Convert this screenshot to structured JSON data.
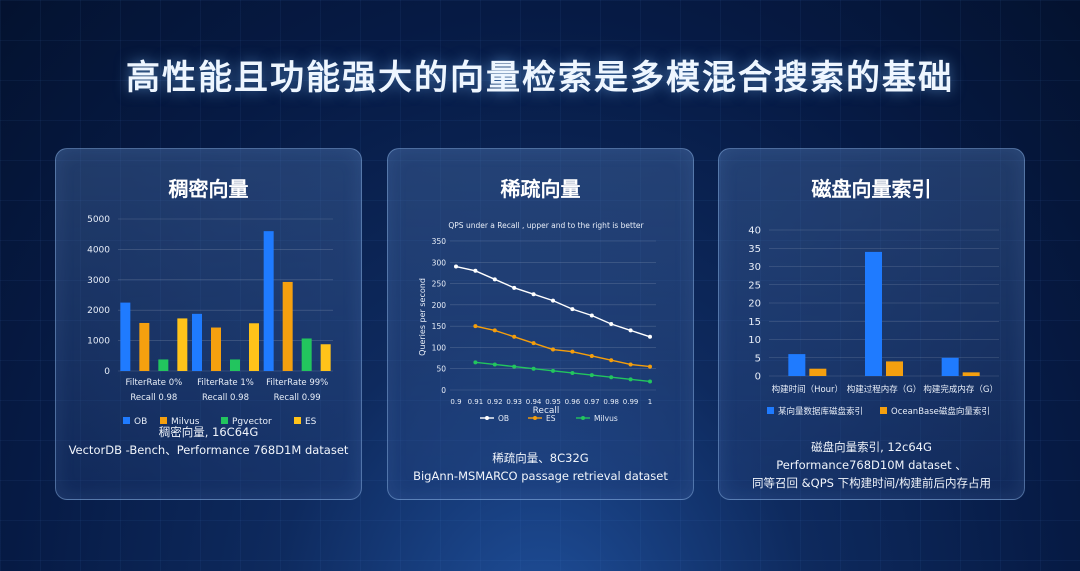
{
  "title": "高性能且功能强大的向量检索是多模混合搜索的基础",
  "cards": [
    {
      "title": "稠密向量",
      "caption": [
        "稠密向量, 16C64G",
        "VectorDB -Bench、Performance 768D1M dataset"
      ]
    },
    {
      "title": "稀疏向量",
      "caption": [
        "稀疏向量、8C32G",
        "BigAnn-MSMARCO passage retrieval dataset"
      ]
    },
    {
      "title": "磁盘向量索引",
      "caption": [
        "磁盘向量索引, 12c64G",
        "Performance768D10M dataset 、",
        "同等召回 &QPS 下构建时间/构建前后内存占用"
      ]
    }
  ],
  "chart_data": [
    {
      "type": "bar",
      "categories": [
        [
          "FilterRate 0%",
          "Recall 0.98"
        ],
        [
          "FilterRate 1%",
          "Recall 0.98"
        ],
        [
          "FilterRate 99%",
          "Recall 0.99"
        ]
      ],
      "series": [
        {
          "name": "OB",
          "color": "#1f7bff",
          "values": [
            2250,
            1880,
            4600
          ]
        },
        {
          "name": "Milvus",
          "color": "#f5a00f",
          "values": [
            1580,
            1430,
            2930
          ]
        },
        {
          "name": "Pgvector",
          "color": "#22c55e",
          "values": [
            380,
            380,
            1070
          ]
        },
        {
          "name": "ES",
          "color": "#ffc31a",
          "values": [
            1730,
            1570,
            880
          ]
        }
      ],
      "yticks": [
        0,
        1000,
        2000,
        3000,
        4000,
        5000
      ],
      "ylim": [
        0,
        5000
      ]
    },
    {
      "type": "line",
      "title": "QPS under a Recall , upper and to the right is better",
      "xlabel": "Recall",
      "ylabel": "Queries per second",
      "x": [
        0.9,
        0.91,
        0.92,
        0.93,
        0.94,
        0.95,
        0.96,
        0.97,
        0.98,
        0.99,
        1
      ],
      "xticks": [
        "0.9",
        "0.91",
        "0.92",
        "0.93",
        "0.94",
        "0.95",
        "0.96",
        "0.97",
        "0.98",
        "0.99",
        "1"
      ],
      "yticks": [
        0,
        50,
        100,
        150,
        200,
        250,
        300,
        350
      ],
      "ylim": [
        0,
        350
      ],
      "series": [
        {
          "name": "OB",
          "color": "#ffffff",
          "x": [
            0.9,
            0.91,
            0.92,
            0.93,
            0.94,
            0.95,
            0.96,
            0.97,
            0.98,
            0.99,
            1
          ],
          "values": [
            290,
            280,
            260,
            240,
            225,
            210,
            190,
            175,
            155,
            140,
            125
          ]
        },
        {
          "name": "ES",
          "color": "#f59e0b",
          "x": [
            0.91,
            0.92,
            0.93,
            0.94,
            0.95,
            0.96,
            0.97,
            0.98,
            0.99,
            1
          ],
          "values": [
            150,
            140,
            125,
            110,
            95,
            90,
            80,
            70,
            60,
            55
          ]
        },
        {
          "name": "Milvus",
          "color": "#22c55e",
          "x": [
            0.91,
            0.92,
            0.93,
            0.94,
            0.95,
            0.96,
            0.97,
            0.98,
            0.99,
            1
          ],
          "values": [
            65,
            60,
            55,
            50,
            45,
            40,
            35,
            30,
            25,
            20
          ]
        }
      ]
    },
    {
      "type": "bar",
      "categories": [
        "构建时间（Hour）",
        "构建过程内存（G）",
        "构建完成内存（G）"
      ],
      "series": [
        {
          "name": "某向量数据库磁盘索引",
          "color": "#1f7bff",
          "values": [
            6,
            34,
            5
          ]
        },
        {
          "name": "OceanBase磁盘向量索引",
          "color": "#f5a00f",
          "values": [
            2,
            4,
            1
          ]
        }
      ],
      "yticks": [
        0,
        5,
        10,
        15,
        20,
        25,
        30,
        35,
        40
      ],
      "ylim": [
        0,
        40
      ]
    }
  ]
}
